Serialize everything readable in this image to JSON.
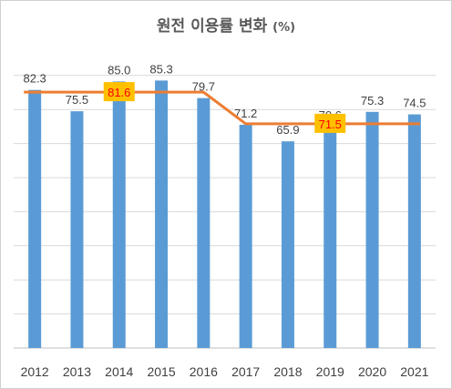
{
  "chart_data": {
    "type": "bar",
    "title": "원전 이용률 변화",
    "title_unit": "(%)",
    "categories": [
      "2012",
      "2013",
      "2014",
      "2015",
      "2016",
      "2017",
      "2018",
      "2019",
      "2020",
      "2021"
    ],
    "values": [
      82.3,
      75.5,
      85.0,
      85.3,
      79.7,
      71.2,
      65.9,
      70.6,
      75.3,
      74.5
    ],
    "ylim": [
      0,
      95
    ],
    "grid": true,
    "bar_color": "#5b9bd5",
    "line_color": "#ed7d31",
    "callout_color": "#ffc000",
    "callout_text_color": "#ff0000",
    "period_averages": [
      {
        "from": "2012",
        "to": "2016",
        "value": 81.6,
        "label": "81.6"
      },
      {
        "from": "2017",
        "to": "2021",
        "value": 71.5,
        "label": "71.5"
      }
    ]
  }
}
